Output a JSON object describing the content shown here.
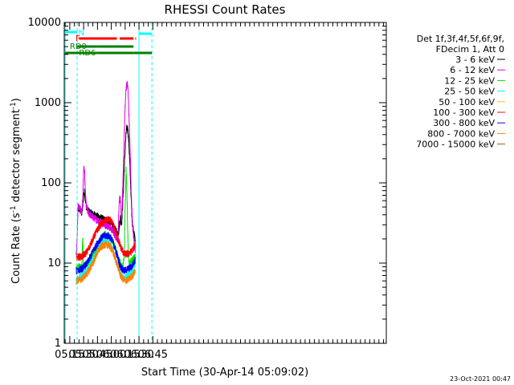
{
  "chart_data": {
    "type": "line",
    "title": "RHESSI Count Rates",
    "xlabel": "Start Time (30-Apr-14 05:09:02)",
    "ylabel": "Count Rate (s",
    "ylabel_sup": "-1",
    "ylabel_rest": " detector segment",
    "ylabel_sup2": "-1",
    "ylabel_close": ")",
    "y_scale": "log",
    "ylim": [
      1,
      10000
    ],
    "xlim_min": [
      309,
      658
    ],
    "y_ticks": [
      {
        "v": 1,
        "label": "1"
      },
      {
        "v": 10,
        "label": "10"
      },
      {
        "v": 100,
        "label": "100"
      },
      {
        "v": 1000,
        "label": "1000"
      },
      {
        "v": 10000,
        "label": "10000"
      }
    ],
    "x_ticks": [
      {
        "t": 315,
        "label": "05:15"
      },
      {
        "t": 330,
        "label": "05:30"
      },
      {
        "t": 345,
        "label": "05:45"
      },
      {
        "t": 360,
        "label": "06:00"
      },
      {
        "t": 375,
        "label": "06:15"
      },
      {
        "t": 390,
        "label": "06:30"
      },
      {
        "t": 405,
        "label": "06:45"
      }
    ],
    "legend": {
      "position": "right",
      "header": [
        "Det 1f,3f,4f,5f,6f,9f,",
        "FDecim 1, Att 0"
      ],
      "entries": [
        {
          "label": "3 - 6 keV",
          "color": "#000000"
        },
        {
          "label": "6 - 12 keV",
          "color": "#e000e0"
        },
        {
          "label": "12 - 25 keV",
          "color": "#00e000"
        },
        {
          "label": "25 - 50 keV",
          "color": "#00ffff"
        },
        {
          "label": "50 - 100 keV",
          "color": "#ffc000"
        },
        {
          "label": "100 - 300 keV",
          "color": "#ff0000"
        },
        {
          "label": "300 - 800 keV",
          "color": "#0000ff"
        },
        {
          "label": "800 - 7000 keV",
          "color": "#ff8000"
        },
        {
          "label": "7000 - 15000 keV",
          "color": "#a06000"
        }
      ]
    },
    "series": [
      {
        "name": "3 - 6 keV",
        "color": "#000000",
        "points": [
          [
            324,
            48
          ],
          [
            326,
            46
          ],
          [
            328,
            42
          ],
          [
            329,
            50
          ],
          [
            330,
            72
          ],
          [
            331,
            78
          ],
          [
            332,
            60
          ],
          [
            333,
            50
          ],
          [
            335,
            45
          ],
          [
            338,
            42
          ],
          [
            342,
            40
          ],
          [
            346,
            38
          ],
          [
            350,
            36
          ],
          [
            354,
            34
          ],
          [
            357,
            33
          ],
          [
            360,
            31
          ],
          [
            363,
            28
          ],
          [
            366,
            24
          ],
          [
            367,
            22
          ],
          [
            368,
            25
          ],
          [
            369,
            32
          ],
          [
            370,
            38
          ],
          [
            371,
            30
          ],
          [
            372,
            45
          ],
          [
            373,
            80
          ],
          [
            374,
            150
          ],
          [
            375,
            260
          ],
          [
            376,
            420
          ],
          [
            377,
            500
          ],
          [
            378,
            460
          ],
          [
            379,
            320
          ],
          [
            380,
            180
          ],
          [
            381,
            90
          ],
          [
            382,
            45
          ],
          [
            383,
            30
          ],
          [
            384,
            26
          ],
          [
            385,
            22
          ],
          [
            386,
            19
          ]
        ]
      },
      {
        "name": "6 - 12 keV",
        "color": "#e000e0",
        "points": [
          [
            322,
            12
          ],
          [
            323,
            22
          ],
          [
            324,
            52
          ],
          [
            326,
            48
          ],
          [
            328,
            43
          ],
          [
            329,
            60
          ],
          [
            330,
            140
          ],
          [
            330.5,
            155
          ],
          [
            331,
            130
          ],
          [
            332,
            72
          ],
          [
            333,
            50
          ],
          [
            335,
            43
          ],
          [
            338,
            39
          ],
          [
            342,
            36
          ],
          [
            346,
            34
          ],
          [
            350,
            32
          ],
          [
            354,
            30
          ],
          [
            358,
            28
          ],
          [
            362,
            25
          ],
          [
            365,
            21
          ],
          [
            367,
            20
          ],
          [
            369,
            70
          ],
          [
            370,
            58
          ],
          [
            371,
            32
          ],
          [
            372,
            60
          ],
          [
            373,
            150
          ],
          [
            374,
            400
          ],
          [
            375,
            900
          ],
          [
            376,
            1500
          ],
          [
            377,
            1800
          ],
          [
            378,
            1500
          ],
          [
            379,
            800
          ],
          [
            380,
            360
          ],
          [
            381,
            140
          ],
          [
            382,
            55
          ],
          [
            383,
            30
          ],
          [
            384,
            22
          ],
          [
            385,
            17
          ],
          [
            386,
            15
          ]
        ]
      },
      {
        "name": "12 - 25 keV",
        "color": "#00e000",
        "points": [
          [
            322,
            9
          ],
          [
            328,
            9
          ],
          [
            329,
            22
          ],
          [
            330,
            9
          ],
          [
            340,
            12
          ],
          [
            346,
            18
          ],
          [
            350,
            21
          ],
          [
            354,
            23
          ],
          [
            357,
            22
          ],
          [
            360,
            20
          ],
          [
            364,
            16
          ],
          [
            368,
            11
          ],
          [
            372,
            9
          ],
          [
            374,
            12
          ],
          [
            375,
            50
          ],
          [
            376,
            150
          ],
          [
            377,
            70
          ],
          [
            378,
            20
          ],
          [
            379,
            10
          ],
          [
            386,
            12
          ]
        ]
      },
      {
        "name": "25 - 50 keV",
        "color": "#00ffff",
        "points": [
          [
            322,
            6
          ],
          [
            328,
            7
          ],
          [
            334,
            8
          ],
          [
            340,
            11
          ],
          [
            346,
            15
          ],
          [
            350,
            18
          ],
          [
            354,
            19
          ],
          [
            358,
            18
          ],
          [
            362,
            14
          ],
          [
            366,
            10
          ],
          [
            370,
            7.5
          ],
          [
            374,
            6.5
          ],
          [
            378,
            7
          ],
          [
            382,
            8
          ],
          [
            386,
            10
          ]
        ]
      },
      {
        "name": "100 - 300 keV",
        "color": "#ff0000",
        "points": [
          [
            322,
            12
          ],
          [
            328,
            12
          ],
          [
            334,
            14
          ],
          [
            340,
            20
          ],
          [
            344,
            25
          ],
          [
            348,
            30
          ],
          [
            352,
            33
          ],
          [
            356,
            35
          ],
          [
            359,
            34
          ],
          [
            362,
            30
          ],
          [
            366,
            22
          ],
          [
            370,
            16
          ],
          [
            374,
            13
          ],
          [
            378,
            13
          ],
          [
            382,
            14
          ],
          [
            386,
            17
          ]
        ]
      },
      {
        "name": "300 - 800 keV",
        "color": "#0000ff",
        "points": [
          [
            322,
            8
          ],
          [
            328,
            8.5
          ],
          [
            334,
            10
          ],
          [
            340,
            14
          ],
          [
            344,
            17
          ],
          [
            348,
            20
          ],
          [
            352,
            22
          ],
          [
            356,
            22
          ],
          [
            359,
            21
          ],
          [
            362,
            18
          ],
          [
            366,
            13
          ],
          [
            370,
            9
          ],
          [
            374,
            8
          ],
          [
            378,
            8.5
          ],
          [
            382,
            9
          ],
          [
            386,
            11
          ]
        ]
      },
      {
        "name": "800 - 7000 keV",
        "color": "#ff8000",
        "points": [
          [
            322,
            6
          ],
          [
            328,
            6.3
          ],
          [
            334,
            7.5
          ],
          [
            340,
            10
          ],
          [
            344,
            13
          ],
          [
            348,
            15.5
          ],
          [
            352,
            17
          ],
          [
            356,
            17
          ],
          [
            359,
            16
          ],
          [
            362,
            13.5
          ],
          [
            366,
            10
          ],
          [
            370,
            7
          ],
          [
            374,
            6
          ],
          [
            378,
            6.2
          ],
          [
            382,
            6.8
          ],
          [
            386,
            8
          ]
        ]
      }
    ],
    "annotations": {
      "cyan_solid_x": [
        310,
        390
      ],
      "cyan_dashed_x": [
        323,
        404
      ],
      "labels": [
        {
          "text": "N",
          "color": "#00ffff"
        },
        {
          "text": "F",
          "color": "#ff0000"
        },
        {
          "text": "RD0",
          "color": "#008000"
        },
        {
          "text": "RD6",
          "color": "#008000"
        }
      ]
    }
  },
  "footer": {
    "timestamp": "23-Oct-2021 00:47"
  }
}
